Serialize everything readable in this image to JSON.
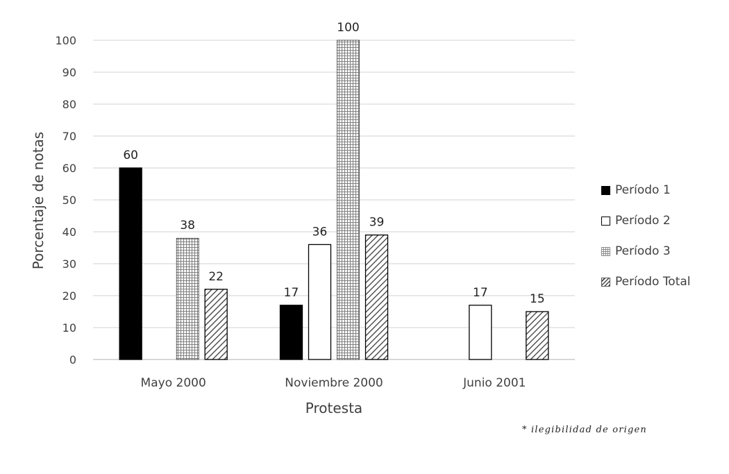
{
  "chart_data": {
    "type": "bar",
    "title": "",
    "xlabel": "Protesta",
    "ylabel": "Porcentaje de notas",
    "ylim": [
      0,
      100
    ],
    "yticks": [
      0,
      10,
      20,
      30,
      40,
      50,
      60,
      70,
      80,
      90,
      100
    ],
    "grid": true,
    "legend_position": "right",
    "categories": [
      "Mayo 2000",
      "Noviembre 2000",
      "Junio 2001"
    ],
    "series": [
      {
        "name": "Período 1",
        "values": [
          60,
          17,
          null
        ],
        "fill": "solid-black"
      },
      {
        "name": "Período 2",
        "values": [
          null,
          36,
          17
        ],
        "fill": "white"
      },
      {
        "name": "Período 3",
        "values": [
          38,
          100,
          null
        ],
        "fill": "grid-pattern"
      },
      {
        "name": "Período Total",
        "values": [
          22,
          39,
          15
        ],
        "fill": "diagonal-hatch"
      }
    ]
  },
  "note": "* ilegibilidad de origen",
  "colors": {
    "grid": "#d9d9d9",
    "axis": "#bfbfbf",
    "bar_outline": "#000000",
    "text": "#404040"
  }
}
